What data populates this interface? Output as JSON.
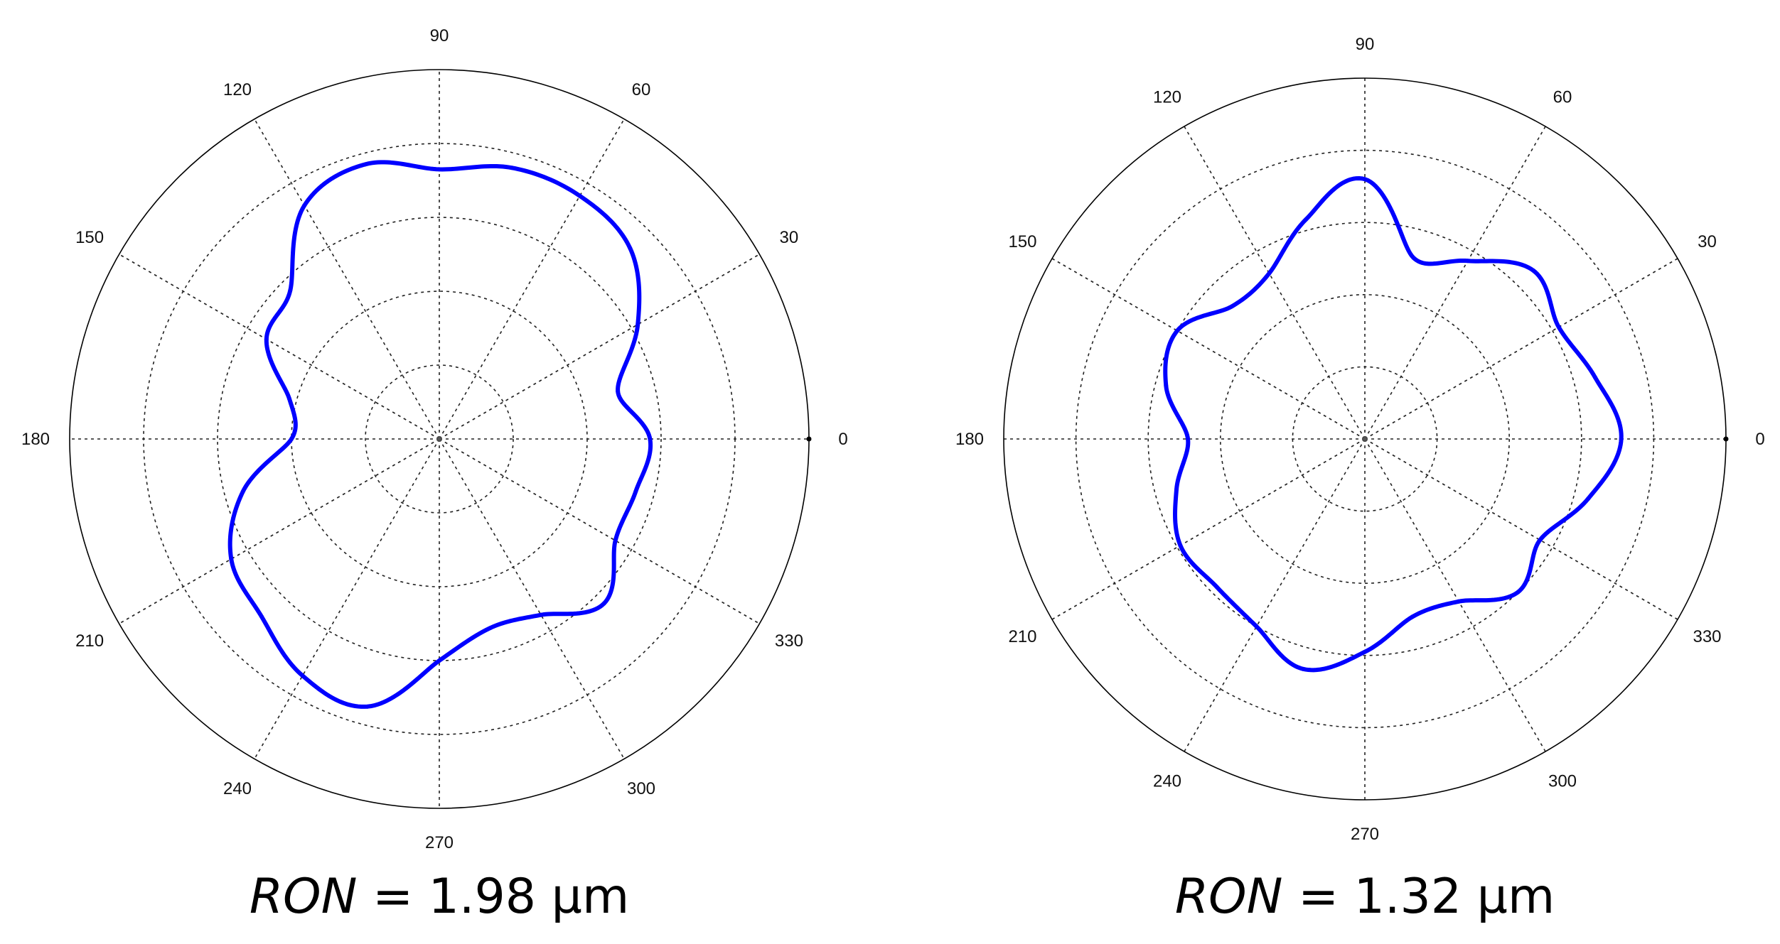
{
  "chart_data": [
    {
      "type": "polar-line",
      "angle_ticks": [
        "0",
        "30",
        "60",
        "90",
        "120",
        "150",
        "180",
        "210",
        "240",
        "270",
        "300",
        "330"
      ],
      "grid_rings": 5,
      "rlim": [
        0,
        1
      ],
      "series_color": "#0000ff",
      "profile": [
        {
          "theta": 0,
          "r": 0.57
        },
        {
          "theta": 15,
          "r": 0.5
        },
        {
          "theta": 30,
          "r": 0.62
        },
        {
          "theta": 45,
          "r": 0.73
        },
        {
          "theta": 60,
          "r": 0.76
        },
        {
          "theta": 75,
          "r": 0.76
        },
        {
          "theta": 90,
          "r": 0.73
        },
        {
          "theta": 105,
          "r": 0.77
        },
        {
          "theta": 120,
          "r": 0.73
        },
        {
          "theta": 135,
          "r": 0.57
        },
        {
          "theta": 150,
          "r": 0.54
        },
        {
          "theta": 165,
          "r": 0.42
        },
        {
          "theta": 180,
          "r": 0.4
        },
        {
          "theta": 195,
          "r": 0.55
        },
        {
          "theta": 210,
          "r": 0.65
        },
        {
          "theta": 225,
          "r": 0.68
        },
        {
          "theta": 240,
          "r": 0.74
        },
        {
          "theta": 255,
          "r": 0.75
        },
        {
          "theta": 270,
          "r": 0.6
        },
        {
          "theta": 285,
          "r": 0.53
        },
        {
          "theta": 300,
          "r": 0.55
        },
        {
          "theta": 315,
          "r": 0.63
        },
        {
          "theta": 330,
          "r": 0.55
        },
        {
          "theta": 345,
          "r": 0.55
        }
      ],
      "caption": {
        "variable": "RON",
        "equals": " = 1.98  µm"
      }
    },
    {
      "type": "polar-line",
      "angle_ticks": [
        "0",
        "30",
        "60",
        "90",
        "120",
        "150",
        "180",
        "210",
        "240",
        "270",
        "300",
        "330"
      ],
      "grid_rings": 5,
      "rlim": [
        0,
        1
      ],
      "series_color": "#0000ff",
      "profile": [
        {
          "theta": 0,
          "r": 0.71
        },
        {
          "theta": 15,
          "r": 0.66
        },
        {
          "theta": 30,
          "r": 0.62
        },
        {
          "theta": 45,
          "r": 0.66
        },
        {
          "theta": 60,
          "r": 0.57
        },
        {
          "theta": 75,
          "r": 0.52
        },
        {
          "theta": 90,
          "r": 0.72
        },
        {
          "theta": 105,
          "r": 0.63
        },
        {
          "theta": 120,
          "r": 0.53
        },
        {
          "theta": 135,
          "r": 0.52
        },
        {
          "theta": 150,
          "r": 0.6
        },
        {
          "theta": 165,
          "r": 0.57
        },
        {
          "theta": 180,
          "r": 0.49
        },
        {
          "theta": 195,
          "r": 0.54
        },
        {
          "theta": 210,
          "r": 0.59
        },
        {
          "theta": 225,
          "r": 0.58
        },
        {
          "theta": 240,
          "r": 0.6
        },
        {
          "theta": 255,
          "r": 0.66
        },
        {
          "theta": 270,
          "r": 0.59
        },
        {
          "theta": 285,
          "r": 0.51
        },
        {
          "theta": 300,
          "r": 0.52
        },
        {
          "theta": 315,
          "r": 0.6
        },
        {
          "theta": 330,
          "r": 0.56
        },
        {
          "theta": 345,
          "r": 0.64
        }
      ],
      "caption": {
        "variable": "RON",
        "equals": " = 1.32  µm"
      }
    }
  ]
}
